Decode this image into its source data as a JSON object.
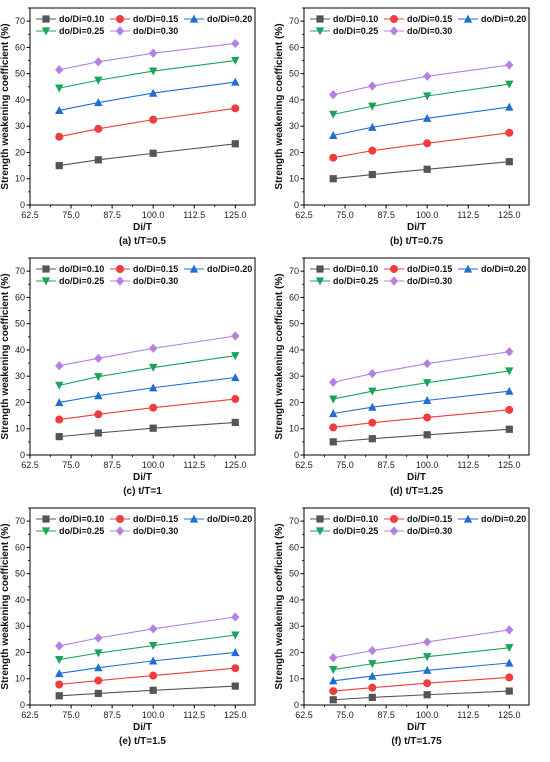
{
  "legend": {
    "entries": [
      "do/Di=0.10",
      "do/Di=0.15",
      "do/Di=0.20",
      "do/Di=0.25",
      "do/Di=0.30"
    ],
    "markers": [
      "square",
      "circle",
      "triangle-up",
      "triangle-down",
      "diamond"
    ],
    "colors": [
      "#555555",
      "#f03c3c",
      "#1f6fd1",
      "#1aa35a",
      "#b77fe0"
    ]
  },
  "chart_data": [
    {
      "type": "line",
      "title": "(a) t/T=0.5",
      "xlabel": "Di/T",
      "ylabel": "Strength weakening coefficient (%)",
      "x": [
        71.4,
        83.3,
        100.0,
        125.0
      ],
      "xlim": [
        62.5,
        131
      ],
      "ylim": [
        0,
        75
      ],
      "xticks": [
        "62.5",
        "75.0",
        "87.5",
        "100.0",
        "112.5",
        "125.0"
      ],
      "yticks": [
        "0",
        "10",
        "20",
        "30",
        "40",
        "50",
        "60",
        "70"
      ],
      "grid": false,
      "legend_position": "top",
      "series": [
        {
          "name": "do/Di=0.10",
          "values": [
            15.0,
            17.2,
            19.7,
            23.3
          ]
        },
        {
          "name": "do/Di=0.15",
          "values": [
            26.0,
            29.0,
            32.5,
            36.8
          ]
        },
        {
          "name": "do/Di=0.20",
          "values": [
            36.0,
            39.0,
            42.6,
            46.8
          ]
        },
        {
          "name": "do/Di=0.25",
          "values": [
            44.5,
            47.5,
            51.0,
            55.0
          ]
        },
        {
          "name": "do/Di=0.30",
          "values": [
            51.5,
            54.5,
            57.8,
            61.5
          ]
        }
      ]
    },
    {
      "type": "line",
      "title": "(b) t/T=0.75",
      "xlabel": "Di/T",
      "ylabel": "Strength weakening coefficient (%)",
      "x": [
        71.4,
        83.3,
        100.0,
        125.0
      ],
      "xlim": [
        62.5,
        131
      ],
      "ylim": [
        0,
        75
      ],
      "xticks": [
        "62.5",
        "75.0",
        "87.5",
        "100.0",
        "112.5",
        "125.0"
      ],
      "yticks": [
        "0",
        "10",
        "20",
        "30",
        "40",
        "50",
        "60",
        "70"
      ],
      "grid": false,
      "legend_position": "top",
      "series": [
        {
          "name": "do/Di=0.10",
          "values": [
            10.0,
            11.6,
            13.6,
            16.5
          ]
        },
        {
          "name": "do/Di=0.15",
          "values": [
            18.0,
            20.7,
            23.5,
            27.5
          ]
        },
        {
          "name": "do/Di=0.20",
          "values": [
            26.5,
            29.6,
            33.0,
            37.3
          ]
        },
        {
          "name": "do/Di=0.25",
          "values": [
            34.5,
            37.6,
            41.5,
            46.0
          ]
        },
        {
          "name": "do/Di=0.30",
          "values": [
            42.0,
            45.3,
            49.0,
            53.3
          ]
        }
      ]
    },
    {
      "type": "line",
      "title": "(c) t/T=1",
      "xlabel": "Di/T",
      "ylabel": "Strength weakening coefficient (%)",
      "x": [
        71.4,
        83.3,
        100.0,
        125.0
      ],
      "xlim": [
        62.5,
        131
      ],
      "ylim": [
        0,
        75
      ],
      "xticks": [
        "62.5",
        "75.0",
        "87.5",
        "100.0",
        "112.5",
        "125.0"
      ],
      "yticks": [
        "0",
        "10",
        "20",
        "30",
        "40",
        "50",
        "60",
        "70"
      ],
      "grid": false,
      "legend_position": "top",
      "series": [
        {
          "name": "do/Di=0.10",
          "values": [
            7.0,
            8.4,
            10.2,
            12.4
          ]
        },
        {
          "name": "do/Di=0.15",
          "values": [
            13.5,
            15.5,
            18.0,
            21.3
          ]
        },
        {
          "name": "do/Di=0.20",
          "values": [
            20.0,
            22.6,
            25.6,
            29.5
          ]
        },
        {
          "name": "do/Di=0.25",
          "values": [
            26.5,
            29.8,
            33.3,
            37.8
          ]
        },
        {
          "name": "do/Di=0.30",
          "values": [
            34.0,
            36.8,
            40.6,
            45.3
          ]
        }
      ]
    },
    {
      "type": "line",
      "title": "(d) t/T=1.25",
      "xlabel": "Di/T",
      "ylabel": "Strength weakening coefficient (%)",
      "x": [
        71.4,
        83.3,
        100.0,
        125.0
      ],
      "xlim": [
        62.5,
        131
      ],
      "ylim": [
        0,
        75
      ],
      "xticks": [
        "62.5",
        "75.0",
        "87.5",
        "100.0",
        "112.5",
        "125.0"
      ],
      "yticks": [
        "0",
        "10",
        "20",
        "30",
        "40",
        "50",
        "60",
        "70"
      ],
      "grid": false,
      "legend_position": "top",
      "series": [
        {
          "name": "do/Di=0.10",
          "values": [
            5.0,
            6.2,
            7.7,
            9.8
          ]
        },
        {
          "name": "do/Di=0.15",
          "values": [
            10.5,
            12.3,
            14.3,
            17.2
          ]
        },
        {
          "name": "do/Di=0.20",
          "values": [
            15.8,
            18.2,
            20.8,
            24.3
          ]
        },
        {
          "name": "do/Di=0.25",
          "values": [
            21.3,
            24.3,
            27.5,
            32.0
          ]
        },
        {
          "name": "do/Di=0.30",
          "values": [
            27.7,
            31.0,
            34.8,
            39.3
          ]
        }
      ]
    },
    {
      "type": "line",
      "title": "(e) t/T=1.5",
      "xlabel": "Di/T",
      "ylabel": "Strength weakening coefficient (%)",
      "x": [
        71.4,
        83.3,
        100.0,
        125.0
      ],
      "xlim": [
        62.5,
        131
      ],
      "ylim": [
        0,
        75
      ],
      "xticks": [
        "62.5",
        "75.0",
        "87.5",
        "100.0",
        "112.5",
        "125.0"
      ],
      "yticks": [
        "0",
        "10",
        "20",
        "30",
        "40",
        "50",
        "60",
        "70"
      ],
      "grid": false,
      "legend_position": "top",
      "series": [
        {
          "name": "do/Di=0.10",
          "values": [
            3.5,
            4.4,
            5.6,
            7.2
          ]
        },
        {
          "name": "do/Di=0.15",
          "values": [
            7.8,
            9.3,
            11.2,
            14.0
          ]
        },
        {
          "name": "do/Di=0.20",
          "values": [
            12.0,
            14.2,
            16.8,
            20.0
          ]
        },
        {
          "name": "do/Di=0.25",
          "values": [
            17.3,
            19.8,
            22.6,
            26.6
          ]
        },
        {
          "name": "do/Di=0.30",
          "values": [
            22.5,
            25.5,
            29.0,
            33.5
          ]
        }
      ]
    },
    {
      "type": "line",
      "title": "(f) t/T=1.75",
      "xlabel": "Di/T",
      "ylabel": "Strength weakening coefficient (%)",
      "x": [
        71.4,
        83.3,
        100.0,
        125.0
      ],
      "xlim": [
        62.5,
        131
      ],
      "ylim": [
        0,
        75
      ],
      "xticks": [
        "62.5",
        "75.0",
        "87.5",
        "100.0",
        "112.5",
        "125.0"
      ],
      "yticks": [
        "0",
        "10",
        "20",
        "30",
        "40",
        "50",
        "60",
        "70"
      ],
      "grid": false,
      "legend_position": "top",
      "series": [
        {
          "name": "do/Di=0.10",
          "values": [
            2.0,
            2.9,
            3.9,
            5.3
          ]
        },
        {
          "name": "do/Di=0.15",
          "values": [
            5.3,
            6.6,
            8.3,
            10.5
          ]
        },
        {
          "name": "do/Di=0.20",
          "values": [
            9.2,
            11.0,
            13.2,
            16.0
          ]
        },
        {
          "name": "do/Di=0.25",
          "values": [
            13.5,
            15.7,
            18.4,
            21.8
          ]
        },
        {
          "name": "do/Di=0.30",
          "values": [
            18.0,
            20.7,
            24.0,
            28.6
          ]
        }
      ]
    }
  ]
}
